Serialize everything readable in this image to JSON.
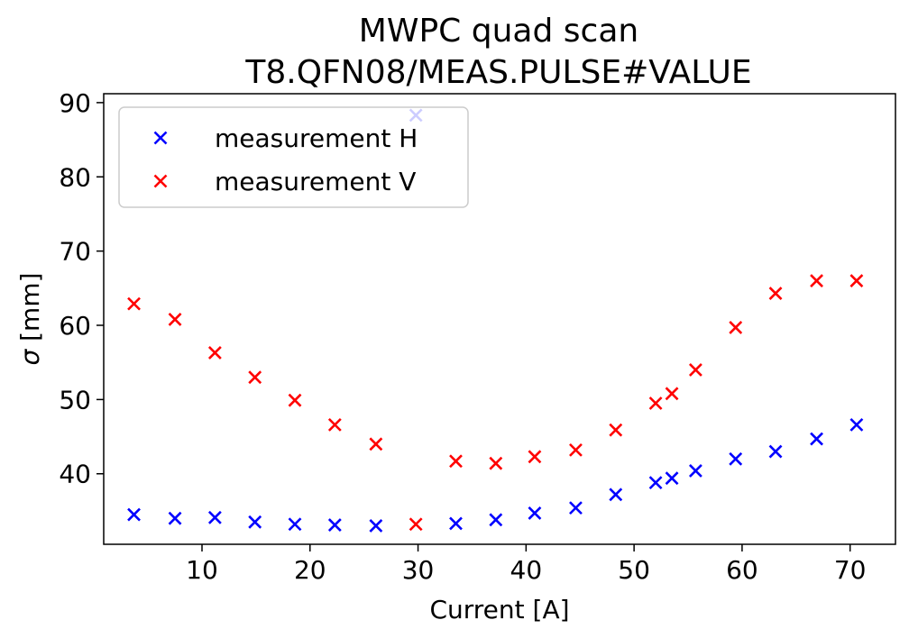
{
  "chart_data": {
    "type": "scatter",
    "title": "MWPC quad scan",
    "subtitle": "T8.QFN08/MEAS.PULSE#VALUE",
    "xlabel": "Current [A]",
    "ylabel_symbol": "σ",
    "ylabel_unit": " [mm]",
    "xlim": [
      0.9,
      74.2
    ],
    "ylim": [
      30.5,
      91.2
    ],
    "xticks": [
      10,
      20,
      30,
      40,
      50,
      60,
      70
    ],
    "yticks": [
      40,
      50,
      60,
      70,
      80,
      90
    ],
    "legend_position": "top-left",
    "grid": false,
    "series": [
      {
        "name": "measurement H",
        "color": "#0000ff",
        "marker": "x",
        "x": [
          3.7,
          7.5,
          11.2,
          14.9,
          18.6,
          22.3,
          26.1,
          29.8,
          33.5,
          37.2,
          40.8,
          44.6,
          48.3,
          52.0,
          53.5,
          55.7,
          59.4,
          63.1,
          66.9,
          70.6
        ],
        "y": [
          34.5,
          34.0,
          34.1,
          33.5,
          33.2,
          33.1,
          33.0,
          88.3,
          33.3,
          33.8,
          34.7,
          35.4,
          37.2,
          38.8,
          39.4,
          40.4,
          42.0,
          43.0,
          44.7,
          46.6
        ]
      },
      {
        "name": "measurement V",
        "color": "#ff0000",
        "marker": "x",
        "x": [
          3.7,
          7.5,
          11.2,
          14.9,
          18.6,
          22.3,
          26.1,
          29.8,
          33.5,
          37.2,
          40.8,
          44.6,
          48.3,
          52.0,
          53.5,
          55.7,
          59.4,
          63.1,
          66.9,
          70.6
        ],
        "y": [
          62.9,
          60.8,
          56.3,
          53.0,
          49.9,
          46.6,
          44.0,
          33.2,
          41.7,
          41.4,
          42.3,
          43.2,
          45.9,
          49.5,
          50.8,
          54.0,
          59.7,
          64.3,
          66.0,
          66.0
        ]
      }
    ]
  }
}
